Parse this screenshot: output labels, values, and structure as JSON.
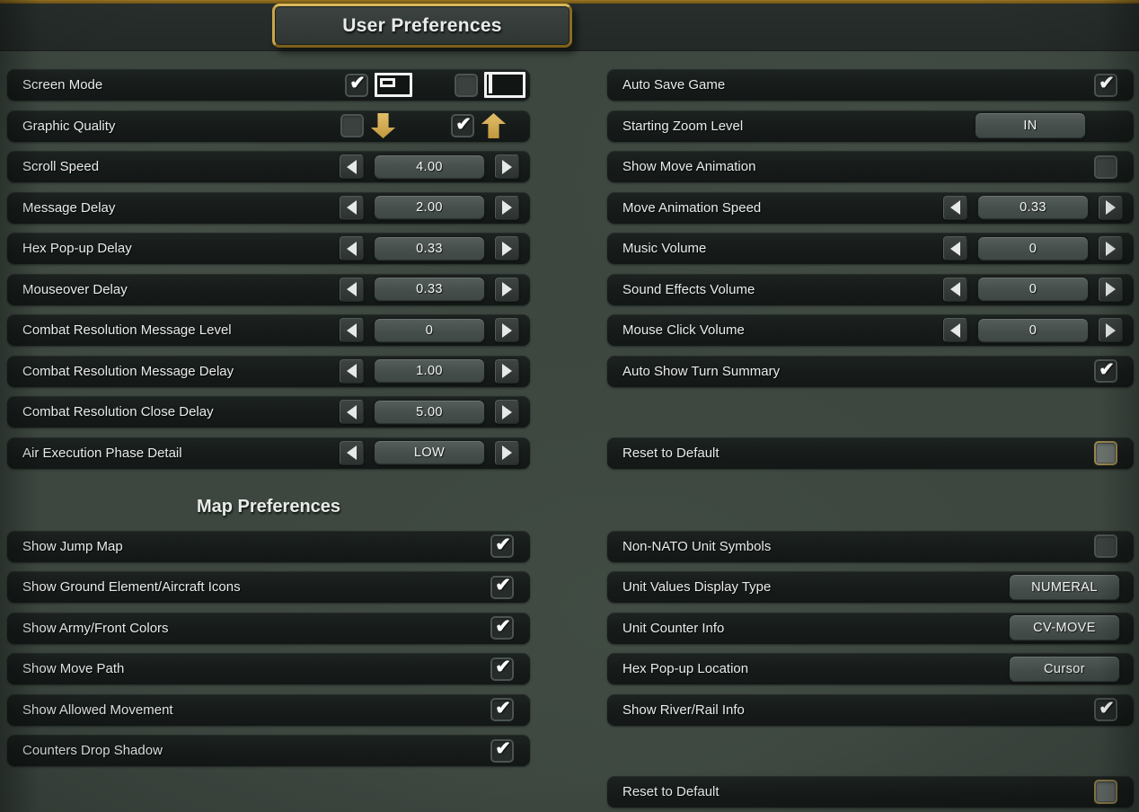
{
  "window": {
    "title": "User Preferences"
  },
  "icons": {
    "check_glyph": "✔"
  },
  "colors": {
    "background": "#3d4740",
    "top_strip": "#252b28",
    "accent_gold_border": "#c8a74b",
    "arrow_gold": "#d7b15c",
    "row_background": "#171c1b",
    "control_face": "#4a5350",
    "text": "#e9ece9",
    "check": "#ffffff",
    "reset_checkbox_border": "#97854f"
  },
  "columns": {
    "left": {
      "rows": [
        {
          "type": "screen_mode",
          "label": "Screen Mode",
          "options": [
            {
              "checked": true,
              "icon": "windowed-icon"
            },
            {
              "checked": false,
              "icon": "fullscreen-icon"
            }
          ]
        },
        {
          "type": "graphic_quality",
          "label": "Graphic Quality",
          "options": [
            {
              "checked": false,
              "icon": "arrow-down-icon"
            },
            {
              "checked": true,
              "icon": "arrow-up-icon"
            }
          ]
        },
        {
          "type": "spinner",
          "label": "Scroll Speed",
          "value": "4.00"
        },
        {
          "type": "spinner",
          "label": "Message Delay",
          "value": "2.00"
        },
        {
          "type": "spinner",
          "label": "Hex Pop-up Delay",
          "value": "0.33"
        },
        {
          "type": "spinner",
          "label": "Mouseover Delay",
          "value": "0.33"
        },
        {
          "type": "spinner",
          "label": "Combat Resolution Message Level",
          "value": "0"
        },
        {
          "type": "spinner",
          "label": "Combat Resolution Message Delay",
          "value": "1.00"
        },
        {
          "type": "spinner",
          "label": "Combat Resolution Close Delay",
          "value": "5.00"
        },
        {
          "type": "spinner",
          "label": "Air Execution Phase Detail",
          "value": "LOW"
        },
        {
          "type": "section_header",
          "label": "Map Preferences"
        },
        {
          "type": "checkbox",
          "label": "Show Jump Map",
          "checked": true
        },
        {
          "type": "checkbox",
          "label": "Show Ground Element/Aircraft Icons",
          "checked": true
        },
        {
          "type": "checkbox",
          "label": "Show Army/Front Colors",
          "checked": true
        },
        {
          "type": "checkbox",
          "label": "Show Move Path",
          "checked": true
        },
        {
          "type": "checkbox",
          "label": "Show Allowed Movement",
          "checked": true
        },
        {
          "type": "checkbox",
          "label": "Counters Drop Shadow",
          "checked": true
        }
      ]
    },
    "right": {
      "rows": [
        {
          "type": "checkbox",
          "label": "Auto Save Game",
          "checked": true
        },
        {
          "type": "button",
          "label": "Starting Zoom Level",
          "button_label": "IN",
          "inset": true
        },
        {
          "type": "checkbox",
          "label": "Show Move Animation",
          "checked": false
        },
        {
          "type": "spinner",
          "label": "Move Animation Speed",
          "value": "0.33"
        },
        {
          "type": "spinner",
          "label": "Music Volume",
          "value": "0"
        },
        {
          "type": "spinner",
          "label": "Sound Effects Volume",
          "value": "0"
        },
        {
          "type": "spinner",
          "label": "Mouse Click Volume",
          "value": "0"
        },
        {
          "type": "checkbox",
          "label": "Auto Show Turn Summary",
          "checked": true
        },
        {
          "type": "spacer"
        },
        {
          "type": "reset",
          "label": "Reset to Default",
          "checked": false
        },
        {
          "type": "spacer_lg"
        },
        {
          "type": "checkbox",
          "label": "Non-NATO Unit Symbols",
          "checked": false
        },
        {
          "type": "button",
          "label": "Unit Values Display Type",
          "button_label": "NUMERAL"
        },
        {
          "type": "button",
          "label": "Unit Counter Info",
          "button_label": "CV-MOVE"
        },
        {
          "type": "button",
          "label": "Hex Pop-up Location",
          "button_label": "Cursor"
        },
        {
          "type": "checkbox",
          "label": "Show River/Rail Info",
          "checked": true
        },
        {
          "type": "spacer"
        },
        {
          "type": "reset",
          "label": "Reset to Default",
          "checked": false
        }
      ]
    }
  }
}
